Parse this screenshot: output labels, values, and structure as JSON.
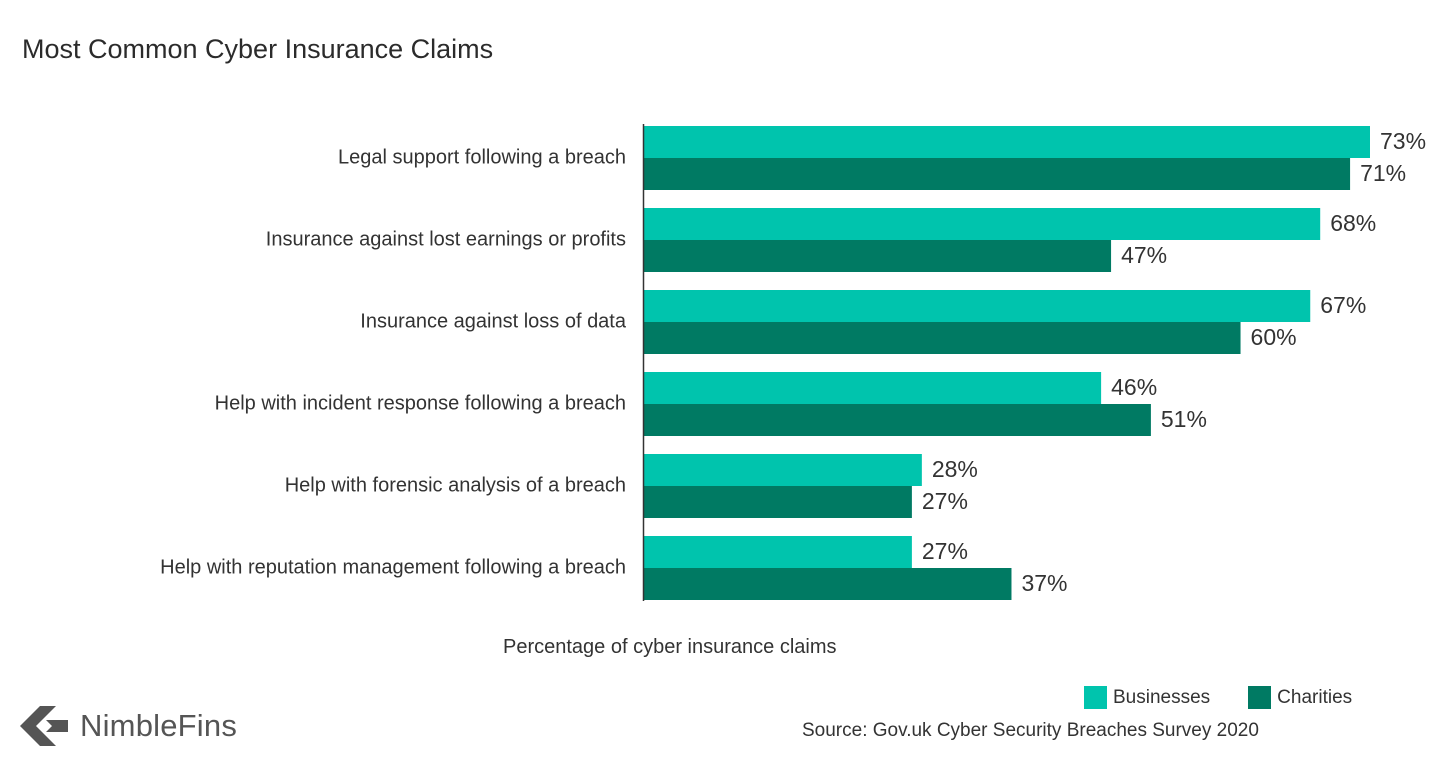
{
  "title": "Most Common Cyber Insurance Claims",
  "brand": {
    "name": "NimbleFins",
    "icon": "nimblefins-logo-icon"
  },
  "source": "Source: Gov.uk Cyber Security Breaches Survey 2020",
  "colors": {
    "businesses": "#00c4ad",
    "charities": "#007a63",
    "axis": "#333333",
    "text": "#333333",
    "logo": "#555555"
  },
  "chart_data": {
    "type": "bar",
    "orientation": "horizontal",
    "title": "Most Common Cyber Insurance Claims",
    "xlabel": "Percentage of cyber insurance claims",
    "ylabel": "",
    "xlim": [
      0,
      73
    ],
    "grid": false,
    "legend_position": "bottom-right",
    "value_suffix": "%",
    "categories": [
      "Legal support following a breach",
      "Insurance against lost earnings or profits",
      "Insurance against loss of data",
      "Help with incident response following a breach",
      "Help with forensic analysis of a breach",
      "Help with reputation management following a breach"
    ],
    "series": [
      {
        "name": "Businesses",
        "values": [
          73,
          68,
          67,
          46,
          28,
          27
        ]
      },
      {
        "name": "Charities",
        "values": [
          71,
          47,
          60,
          51,
          27,
          37
        ]
      }
    ]
  }
}
